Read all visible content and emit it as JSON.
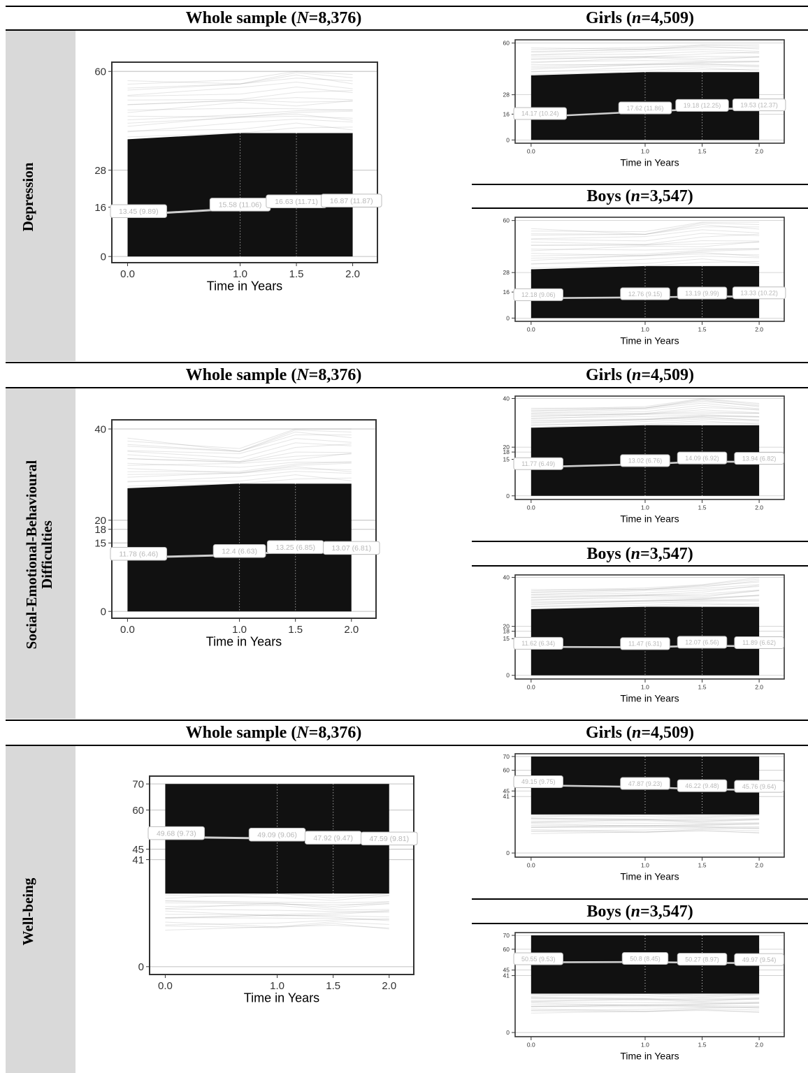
{
  "headers": {
    "whole": {
      "prefix": "Whole sample (",
      "var": "N",
      "value": "=8,376)"
    },
    "girls": {
      "prefix": "Girls (",
      "var": "n",
      "value": "=4,509)"
    },
    "boys": {
      "prefix": "Boys (",
      "var": "n",
      "value": "=3,547)"
    }
  },
  "rows": [
    {
      "label": "Depression"
    },
    {
      "label": "Social-Emotional-Behavioural\nDifficulties"
    },
    {
      "label": "Well-being"
    }
  ],
  "colors": {
    "band": "#d9d9d9",
    "lines": "#111111",
    "mean": "#cfcfcf"
  },
  "chart_data": [
    {
      "id": "dep-whole",
      "type": "line",
      "xlabel": "Time in Years",
      "x": [
        0,
        1,
        1.5,
        2
      ],
      "xticks": [
        "0.0",
        "1.0",
        "1.5",
        "2.0"
      ],
      "yticks": [
        0,
        16,
        28,
        60
      ],
      "ylim": [
        -2,
        63
      ],
      "mean": [
        13.45,
        15.58,
        16.63,
        16.87
      ],
      "labels": [
        "13.45 (9.89)",
        "15.58 (11.06)",
        "16.63 (11.71)",
        "16.87 (11.87)"
      ],
      "envelope": {
        "min": [
          0,
          0,
          0,
          0
        ],
        "dense": [
          38,
          40,
          40,
          40
        ],
        "max": [
          57,
          58,
          60,
          59
        ]
      }
    },
    {
      "id": "dep-girls",
      "type": "line",
      "xlabel": "Time in Years",
      "x": [
        0,
        1,
        1.5,
        2
      ],
      "xticks": [
        "0.0",
        "1.0",
        "1.5",
        "2.0"
      ],
      "yticks": [
        0,
        16,
        28,
        60
      ],
      "ylim": [
        -2,
        62
      ],
      "mean": [
        14.17,
        17.62,
        19.18,
        19.53
      ],
      "labels": [
        "14.17 (10.24)",
        "17.62 (11.86)",
        "19.18 (12.25)",
        "19.53 (12.37)"
      ],
      "envelope": {
        "min": [
          0,
          0,
          0,
          0
        ],
        "dense": [
          40,
          42,
          42,
          42
        ],
        "max": [
          57,
          58,
          59,
          59
        ]
      }
    },
    {
      "id": "dep-boys",
      "type": "line",
      "xlabel": "Time in Years",
      "x": [
        0,
        1,
        1.5,
        2
      ],
      "xticks": [
        "0.0",
        "1.0",
        "1.5",
        "2.0"
      ],
      "yticks": [
        0,
        16,
        28,
        60
      ],
      "ylim": [
        -2,
        62
      ],
      "mean": [
        12.18,
        12.76,
        13.19,
        13.33
      ],
      "labels": [
        "12.18 (9.06)",
        "12.76 (9.15)",
        "13.19 (9.99)",
        "13.33 (10.22)"
      ],
      "envelope": {
        "min": [
          0,
          0,
          0,
          0
        ],
        "dense": [
          30,
          32,
          32,
          32
        ],
        "max": [
          55,
          54,
          59,
          59
        ]
      }
    },
    {
      "id": "sdq-whole",
      "type": "line",
      "xlabel": "Time in Years",
      "x": [
        0,
        1,
        1.5,
        2
      ],
      "xticks": [
        "0.0",
        "1.0",
        "1.5",
        "2.0"
      ],
      "yticks": [
        0,
        15,
        18,
        20,
        40
      ],
      "ylim": [
        -1.5,
        42
      ],
      "mean": [
        11.78,
        12.4,
        13.25,
        13.07
      ],
      "labels": [
        "11.78 (6.46)",
        "12.4 (6.63)",
        "13.25 (6.85)",
        "13.07 (6.81)"
      ],
      "envelope": {
        "min": [
          0,
          0,
          0,
          0
        ],
        "dense": [
          27,
          28,
          28,
          28
        ],
        "max": [
          38,
          36,
          40,
          40
        ]
      }
    },
    {
      "id": "sdq-girls",
      "type": "line",
      "xlabel": "Time in Years",
      "x": [
        0,
        1,
        1.5,
        2
      ],
      "xticks": [
        "0.0",
        "1.0",
        "1.5",
        "2.0"
      ],
      "yticks": [
        0,
        15,
        18,
        20,
        40
      ],
      "ylim": [
        -1.5,
        41
      ],
      "mean": [
        11.77,
        13.02,
        14.09,
        13.94
      ],
      "labels": [
        "11.77 (6.49)",
        "13.02 (6.76)",
        "14.09 (6.92)",
        "13.94 (6.82)"
      ],
      "envelope": {
        "min": [
          0,
          0,
          0,
          0
        ],
        "dense": [
          28,
          29,
          29,
          29
        ],
        "max": [
          36,
          37,
          40,
          38
        ]
      }
    },
    {
      "id": "sdq-boys",
      "type": "line",
      "xlabel": "Time in Years",
      "x": [
        0,
        1,
        1.5,
        2
      ],
      "xticks": [
        "0.0",
        "1.0",
        "1.5",
        "2.0"
      ],
      "yticks": [
        0,
        15,
        18,
        20,
        40
      ],
      "ylim": [
        -1.5,
        41
      ],
      "mean": [
        11.62,
        11.47,
        12.07,
        11.89
      ],
      "labels": [
        "11.62 (6.34)",
        "11.47 (6.31)",
        "12.07 (6.56)",
        "11.89 (6.62)"
      ],
      "envelope": {
        "min": [
          0,
          0,
          0,
          0
        ],
        "dense": [
          27,
          28,
          28,
          28
        ],
        "max": [
          35,
          36,
          37,
          40
        ]
      }
    },
    {
      "id": "wb-whole",
      "type": "line",
      "xlabel": "Time in Years",
      "x": [
        0,
        1,
        1.5,
        2
      ],
      "xticks": [
        "0.0",
        "1.0",
        "1.5",
        "2.0"
      ],
      "yticks": [
        0,
        41,
        45,
        60,
        70
      ],
      "ylim": [
        -3,
        73
      ],
      "mean": [
        49.68,
        49.09,
        47.92,
        47.59
      ],
      "labels": [
        "49.68 (9.73)",
        "49.09 (9.06)",
        "47.92 (9.47)",
        "47.59 (9.81)"
      ],
      "envelope": {
        "min": [
          14,
          14,
          14,
          14
        ],
        "dense": [
          28,
          28,
          28,
          28
        ],
        "max": [
          70,
          70,
          70,
          70
        ]
      }
    },
    {
      "id": "wb-girls",
      "type": "line",
      "xlabel": "Time in Years",
      "x": [
        0,
        1,
        1.5,
        2
      ],
      "xticks": [
        "0.0",
        "1.0",
        "1.5",
        "2.0"
      ],
      "yticks": [
        0,
        41,
        45,
        60,
        70
      ],
      "ylim": [
        -3,
        72
      ],
      "mean": [
        49.15,
        47.87,
        46.22,
        45.76
      ],
      "labels": [
        "49.15 (9.75)",
        "47.87 (9.23)",
        "46.22 (9.48)",
        "45.76 (9.64)"
      ],
      "envelope": {
        "min": [
          14,
          14,
          14,
          14
        ],
        "dense": [
          28,
          28,
          28,
          28
        ],
        "max": [
          70,
          70,
          70,
          70
        ]
      }
    },
    {
      "id": "wb-boys",
      "type": "line",
      "xlabel": "Time in Years",
      "x": [
        0,
        1,
        1.5,
        2
      ],
      "xticks": [
        "0.0",
        "1.0",
        "1.5",
        "2.0"
      ],
      "yticks": [
        0,
        41,
        45,
        60,
        70
      ],
      "ylim": [
        -3,
        72
      ],
      "mean": [
        50.55,
        50.8,
        50.27,
        49.97
      ],
      "labels": [
        "50.55 (9.53)",
        "50.8 (8.45)",
        "50.27 (8.97)",
        "49.97 (9.54)"
      ],
      "envelope": {
        "min": [
          14,
          14,
          14,
          14
        ],
        "dense": [
          28,
          28,
          28,
          28
        ],
        "max": [
          70,
          70,
          70,
          70
        ]
      }
    }
  ]
}
